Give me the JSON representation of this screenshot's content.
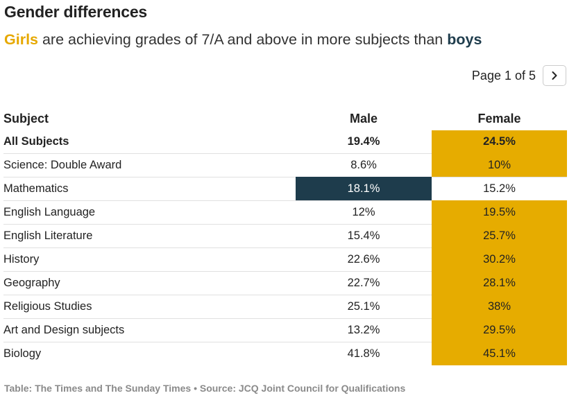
{
  "title": "Gender differences",
  "subtitle": {
    "girls": "Girls",
    "middle": " are achieving grades of 7/A and above in more subjects than ",
    "boys": "boys"
  },
  "pager": {
    "label": "Page 1 of 5",
    "next_icon": "chevron-right-icon"
  },
  "colors": {
    "female_highlight": "#e6ac00",
    "male_highlight": "#1e3c4c",
    "girls_text": "#e6a800",
    "boys_text": "#1e3c4c"
  },
  "chart_data": {
    "type": "table",
    "columns": [
      "Subject",
      "Male",
      "Female"
    ],
    "rows": [
      {
        "subject": "All Subjects",
        "male": "19.4%",
        "female": "24.5%",
        "highlight": "female",
        "bold": true
      },
      {
        "subject": "Science: Double Award",
        "male": "8.6%",
        "female": "10%",
        "highlight": "female",
        "bold": false
      },
      {
        "subject": "Mathematics",
        "male": "18.1%",
        "female": "15.2%",
        "highlight": "male",
        "bold": false
      },
      {
        "subject": "English Language",
        "male": "12%",
        "female": "19.5%",
        "highlight": "female",
        "bold": false
      },
      {
        "subject": "English Literature",
        "male": "15.4%",
        "female": "25.7%",
        "highlight": "female",
        "bold": false
      },
      {
        "subject": "History",
        "male": "22.6%",
        "female": "30.2%",
        "highlight": "female",
        "bold": false
      },
      {
        "subject": "Geography",
        "male": "22.7%",
        "female": "28.1%",
        "highlight": "female",
        "bold": false
      },
      {
        "subject": "Religious Studies",
        "male": "25.1%",
        "female": "38%",
        "highlight": "female",
        "bold": false
      },
      {
        "subject": "Art and Design subjects",
        "male": "13.2%",
        "female": "29.5%",
        "highlight": "female",
        "bold": false
      },
      {
        "subject": "Biology",
        "male": "41.8%",
        "female": "45.1%",
        "highlight": "female",
        "bold": false
      }
    ]
  },
  "footer": "Table: The Times and The Sunday Times • Source: JCQ Joint Council for Qualifications"
}
